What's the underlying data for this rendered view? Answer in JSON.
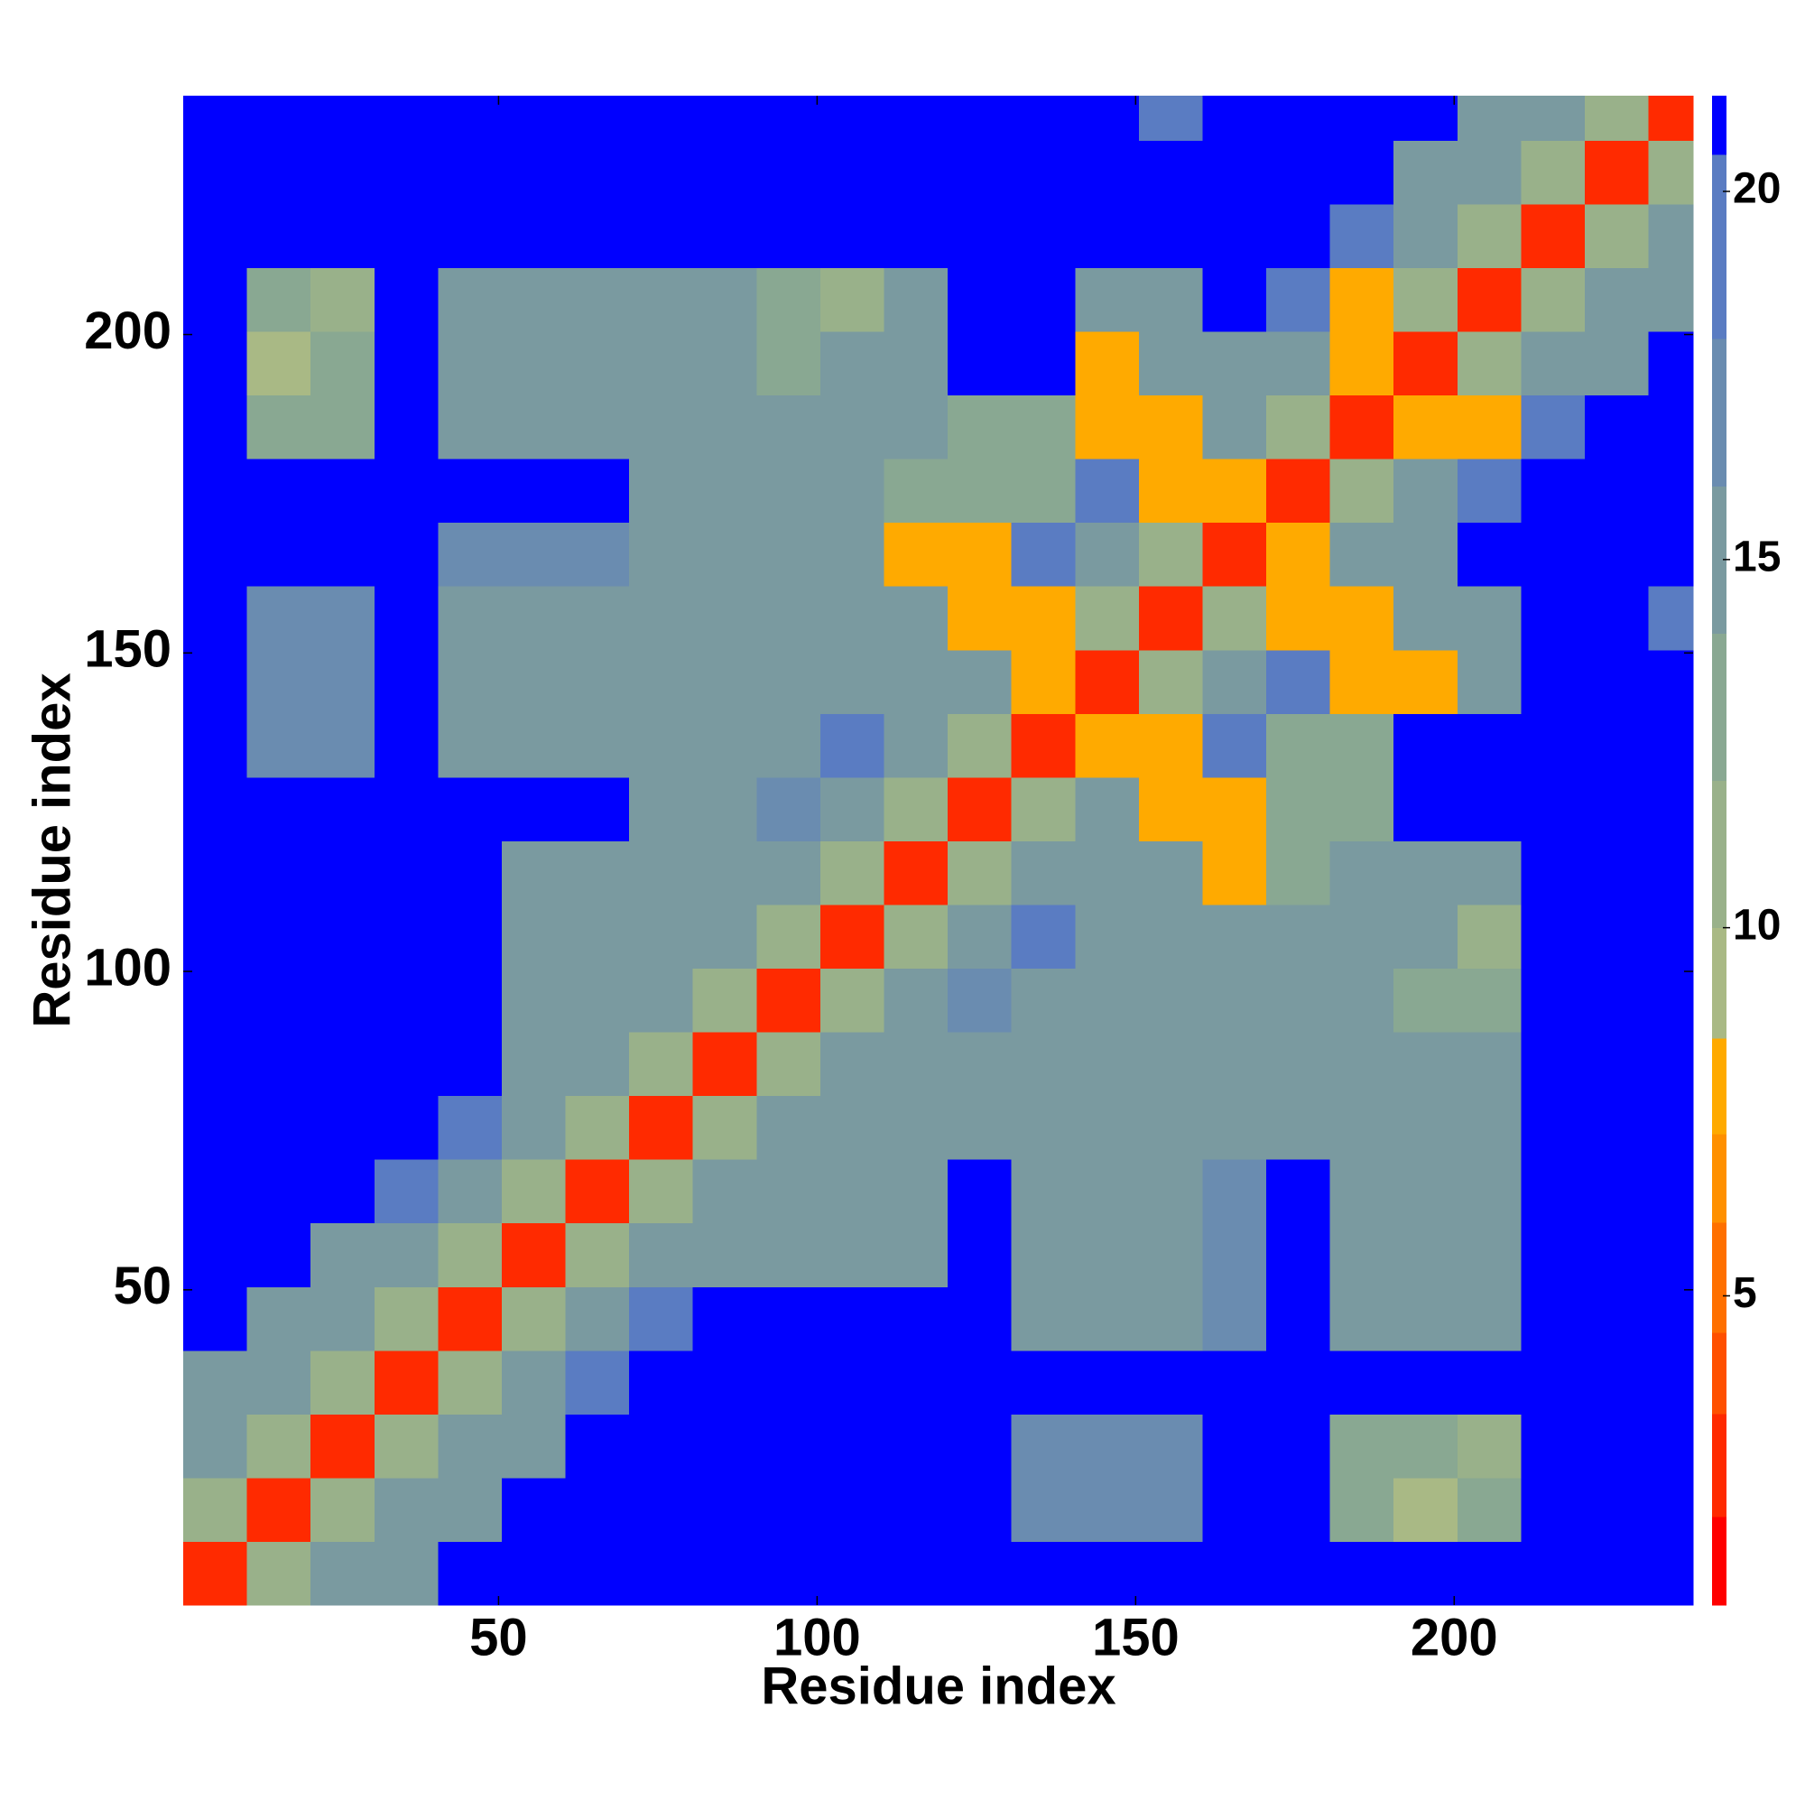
{
  "chart_data": {
    "type": "heatmap",
    "xlabel": "Residue index",
    "ylabel": "Residue index",
    "xlim": [
      0.5,
      237.5
    ],
    "ylim": [
      0.5,
      237.5
    ],
    "xticks": [
      50,
      100,
      150,
      200
    ],
    "yticks": [
      50,
      100,
      150,
      200
    ],
    "xbins": [
      0.5,
      10.5,
      20.5,
      30.5,
      40.5,
      50.5,
      60.5,
      70.5,
      80.5,
      90.5,
      100.5,
      110.5,
      120.5,
      130.5,
      140.5,
      150.5,
      160.5,
      170.5,
      180.5,
      190.5,
      200.5,
      210.5,
      220.5,
      230.5,
      237.5
    ],
    "ybins": [
      0.5,
      10.5,
      20.5,
      30.5,
      40.5,
      50.5,
      60.5,
      70.5,
      80.5,
      90.5,
      100.5,
      110.5,
      120.5,
      130.5,
      140.5,
      150.5,
      160.5,
      170.5,
      180.5,
      190.5,
      200.5,
      210.5,
      220.5,
      230.5,
      237.5
    ],
    "z": [
      [
        3,
        10,
        14,
        14,
        21,
        21,
        21,
        21,
        21,
        21,
        21,
        21,
        21,
        21,
        21,
        21,
        21,
        21,
        21,
        21,
        21,
        21,
        21,
        21
      ],
      [
        10,
        3,
        10,
        14,
        14,
        21,
        21,
        21,
        21,
        21,
        21,
        21,
        21,
        16,
        16,
        16,
        21,
        21,
        13,
        9,
        13,
        21,
        21,
        21
      ],
      [
        14,
        10,
        3,
        10,
        14,
        14,
        21,
        21,
        21,
        21,
        21,
        21,
        21,
        16,
        16,
        16,
        21,
        21,
        13,
        13,
        10,
        21,
        21,
        21
      ],
      [
        14,
        14,
        10,
        3,
        10,
        14,
        19,
        21,
        21,
        21,
        21,
        21,
        21,
        21,
        21,
        21,
        21,
        21,
        21,
        21,
        21,
        21,
        21,
        21
      ],
      [
        21,
        14,
        14,
        10,
        3,
        10,
        15,
        19,
        21,
        21,
        21,
        21,
        21,
        15,
        15,
        15,
        16,
        21,
        15,
        15,
        15,
        21,
        21,
        21
      ],
      [
        21,
        21,
        14,
        14,
        10,
        3,
        10,
        15,
        15,
        15,
        15,
        15,
        21,
        15,
        15,
        15,
        16,
        21,
        15,
        15,
        15,
        21,
        21,
        21
      ],
      [
        21,
        21,
        21,
        19,
        15,
        10,
        3,
        10,
        15,
        15,
        15,
        15,
        21,
        15,
        15,
        15,
        16,
        21,
        15,
        15,
        15,
        21,
        21,
        21
      ],
      [
        21,
        21,
        21,
        21,
        19,
        15,
        10,
        3,
        10,
        15,
        15,
        15,
        15,
        15,
        14,
        14,
        14,
        15,
        15,
        15,
        15,
        21,
        21,
        21
      ],
      [
        21,
        21,
        21,
        21,
        21,
        15,
        15,
        10,
        3,
        10,
        15,
        15,
        15,
        15,
        14,
        14,
        14,
        15,
        15,
        15,
        15,
        21,
        21,
        21
      ],
      [
        21,
        21,
        21,
        21,
        21,
        15,
        15,
        15,
        10,
        3,
        10,
        15,
        16,
        15,
        14,
        14,
        14,
        15,
        15,
        12,
        12,
        21,
        21,
        21
      ],
      [
        21,
        21,
        21,
        21,
        21,
        15,
        15,
        15,
        15,
        10,
        3,
        10,
        15,
        19,
        14,
        14,
        14,
        15,
        15,
        15,
        10,
        21,
        21,
        21
      ],
      [
        21,
        21,
        21,
        21,
        21,
        15,
        15,
        15,
        15,
        15,
        10,
        3,
        10,
        15,
        14,
        14,
        8,
        13,
        15,
        15,
        15,
        21,
        21,
        21
      ],
      [
        21,
        21,
        21,
        21,
        21,
        21,
        21,
        15,
        15,
        16,
        15,
        10,
        3,
        10,
        15,
        8,
        8,
        13,
        13,
        21,
        21,
        21,
        21,
        21
      ],
      [
        21,
        16,
        16,
        21,
        15,
        15,
        15,
        15,
        15,
        15,
        19,
        15,
        10,
        3,
        8,
        8,
        19,
        13,
        13,
        21,
        21,
        21,
        21,
        21
      ],
      [
        21,
        16,
        16,
        21,
        15,
        15,
        15,
        14,
        14,
        14,
        14,
        14,
        15,
        8,
        3,
        10,
        15,
        19,
        8,
        8,
        15,
        21,
        21,
        21
      ],
      [
        21,
        16,
        16,
        21,
        15,
        15,
        15,
        14,
        14,
        14,
        14,
        14,
        8,
        8,
        10,
        3,
        10,
        8,
        8,
        14,
        15,
        21,
        21,
        19
      ],
      [
        21,
        21,
        21,
        21,
        16,
        16,
        16,
        14,
        14,
        14,
        14,
        8,
        8,
        19,
        15,
        10,
        3,
        8,
        15,
        14,
        21,
        21,
        21,
        21
      ],
      [
        21,
        21,
        21,
        21,
        21,
        21,
        21,
        15,
        15,
        15,
        15,
        13,
        13,
        13,
        19,
        8,
        8,
        3,
        10,
        15,
        19,
        21,
        21,
        21
      ],
      [
        21,
        13,
        13,
        21,
        15,
        15,
        15,
        15,
        15,
        15,
        15,
        15,
        13,
        13,
        8,
        8,
        15,
        10,
        3,
        8,
        8,
        19,
        21,
        21
      ],
      [
        21,
        9,
        13,
        21,
        15,
        15,
        15,
        15,
        15,
        12,
        15,
        15,
        21,
        21,
        8,
        14,
        14,
        15,
        8,
        3,
        10,
        14,
        14,
        21
      ],
      [
        21,
        13,
        10,
        21,
        15,
        15,
        15,
        15,
        15,
        12,
        10,
        15,
        21,
        21,
        15,
        15,
        21,
        19,
        8,
        10,
        3,
        10,
        14,
        14
      ],
      [
        21,
        21,
        21,
        21,
        21,
        21,
        21,
        21,
        21,
        21,
        21,
        21,
        21,
        21,
        21,
        21,
        21,
        21,
        19,
        14,
        10,
        3,
        10,
        14
      ],
      [
        21,
        21,
        21,
        21,
        21,
        21,
        21,
        21,
        21,
        21,
        21,
        21,
        21,
        21,
        21,
        21,
        21,
        21,
        21,
        14,
        14,
        10,
        3,
        10
      ],
      [
        21,
        21,
        21,
        21,
        21,
        21,
        21,
        21,
        21,
        21,
        21,
        21,
        21,
        21,
        21,
        19,
        21,
        21,
        21,
        21,
        14,
        14,
        10,
        3
      ]
    ],
    "colorbar": {
      "levels": [
        0.8,
        2,
        3.4,
        4.5,
        6,
        7.2,
        8.5,
        10,
        12,
        14,
        16,
        18,
        20.5,
        21.3
      ],
      "colors": [
        "#ff0000",
        "#ff2a00",
        "#ff5000",
        "#ff7000",
        "#ff9000",
        "#ffaa00",
        "#a9b985",
        "#99b18a",
        "#89a892",
        "#7a9aa0",
        "#6a8cb0",
        "#5a7cc2",
        "#0000ff"
      ],
      "ticks": [
        5,
        10,
        15,
        20
      ]
    }
  }
}
